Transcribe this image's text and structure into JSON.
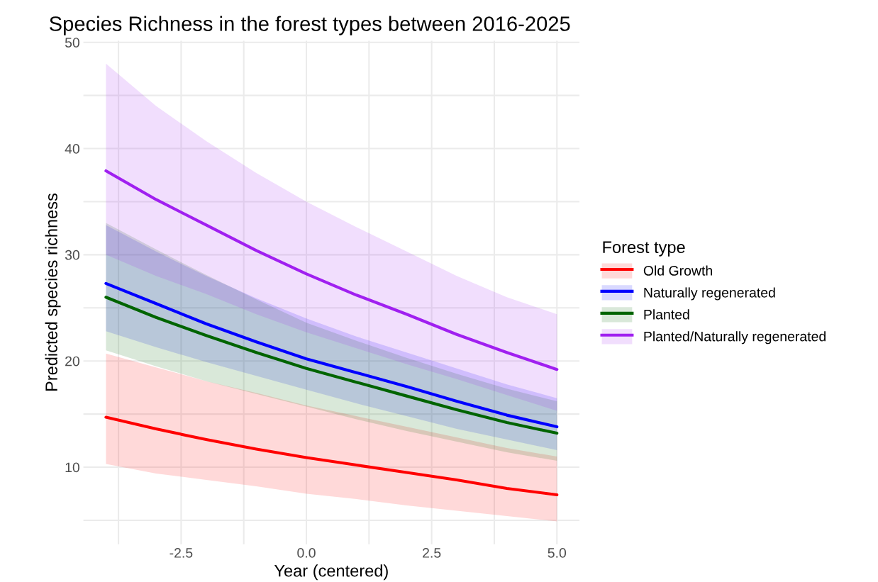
{
  "chart_data": {
    "type": "line",
    "title": "Species Richness in the forest types between 2016-2025",
    "xlabel": "Year (centered)",
    "ylabel": "Predicted species richness",
    "legend_title": "Forest type",
    "legend": "right",
    "grid": true,
    "x": [
      -4,
      -3,
      -2,
      -1,
      0,
      1,
      2,
      3,
      4,
      5
    ],
    "xlim": [
      -4.45,
      5.45
    ],
    "ylim": [
      2.75,
      50.15
    ],
    "xticks": [
      {
        "value": -3.75,
        "label": null
      },
      -2.5,
      {
        "value": -1.25,
        "label": null
      },
      {
        "value": 0,
        "label": "0.0"
      },
      {
        "value": 1.25,
        "label": null
      },
      2.5,
      {
        "value": 3.75,
        "label": null
      },
      {
        "value": 5,
        "label": "5.0"
      }
    ],
    "yticks": [
      {
        "value": 5,
        "label": null
      },
      10,
      {
        "value": 15,
        "label": null
      },
      20,
      {
        "value": 25,
        "label": null
      },
      30,
      {
        "value": 35,
        "label": null
      },
      40,
      {
        "value": 45,
        "label": null
      },
      50
    ],
    "series": [
      {
        "name": "Old Growth",
        "color": "#ff0000",
        "values": [
          14.7,
          13.6,
          12.6,
          11.7,
          10.9,
          10.2,
          9.5,
          8.8,
          8.0,
          7.4
        ],
        "lower": [
          10.3,
          9.4,
          8.8,
          8.2,
          7.5,
          7.0,
          6.4,
          5.9,
          5.4,
          4.9
        ],
        "upper": [
          20.7,
          19.4,
          18.1,
          17.0,
          15.8,
          14.8,
          13.8,
          12.8,
          11.8,
          11.0
        ]
      },
      {
        "name": "Naturally regenerated",
        "color": "#0000ff",
        "values": [
          27.3,
          25.4,
          23.5,
          21.8,
          20.2,
          18.9,
          17.6,
          16.2,
          14.9,
          13.8
        ],
        "lower": [
          22.8,
          21.3,
          19.9,
          18.6,
          17.3,
          16.0,
          14.8,
          13.6,
          12.6,
          11.6
        ],
        "upper": [
          32.8,
          30.3,
          28.0,
          25.9,
          24.0,
          22.3,
          20.8,
          19.3,
          17.8,
          16.5
        ]
      },
      {
        "name": "Planted",
        "color": "#006400",
        "values": [
          26.0,
          24.1,
          22.4,
          20.8,
          19.3,
          18.0,
          16.7,
          15.4,
          14.2,
          13.2
        ],
        "lower": [
          21.0,
          19.5,
          18.1,
          16.9,
          15.7,
          14.5,
          13.4,
          12.4,
          11.4,
          10.6
        ],
        "upper": [
          33.0,
          30.5,
          28.1,
          25.8,
          23.6,
          21.9,
          20.3,
          18.8,
          17.4,
          16.2
        ]
      },
      {
        "name": "Planted/Naturally regenerated",
        "color": "#a020f0",
        "values": [
          37.9,
          35.2,
          32.8,
          30.4,
          28.2,
          26.2,
          24.4,
          22.5,
          20.8,
          19.2
        ],
        "lower": [
          30.0,
          28.0,
          26.3,
          24.4,
          22.7,
          21.2,
          19.7,
          18.3,
          16.8,
          15.3
        ],
        "upper": [
          48.0,
          44.0,
          40.7,
          37.7,
          35.0,
          32.6,
          30.3,
          28.0,
          26.0,
          24.4
        ]
      }
    ]
  }
}
